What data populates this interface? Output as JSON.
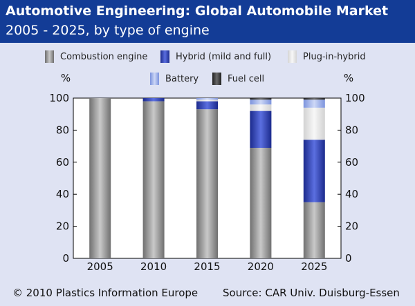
{
  "header": {
    "title": "Automotive Engineering: Global Automobile Market",
    "subtitle": "2005 - 2025, by type of engine"
  },
  "footer": {
    "copyright": "© 2010 Plastics Information Europe",
    "source": "Source: CAR Univ. Duisburg-Essen"
  },
  "colors": {
    "header_bg": "#133c96",
    "background": "#dfe3f3",
    "combustion": "#8a8a8a",
    "hybrid": "#2e3fb5",
    "plugin": "#e6e6e6",
    "battery": "#9fb2ea",
    "fuelcell": "#3a3a3a"
  },
  "chart_data": {
    "type": "bar",
    "stacked": true,
    "categories": [
      "2005",
      "2010",
      "2015",
      "2020",
      "2025"
    ],
    "series": [
      {
        "name": "Combustion engine",
        "key": "combustion",
        "values": [
          100,
          98,
          93,
          69,
          35
        ]
      },
      {
        "name": "Hybrid (mild and full)",
        "key": "hybrid",
        "values": [
          0,
          2,
          5,
          23,
          39
        ]
      },
      {
        "name": "Plug-in-hybrid",
        "key": "plugin",
        "values": [
          0,
          0,
          1,
          4,
          20
        ]
      },
      {
        "name": "Battery",
        "key": "battery",
        "values": [
          0,
          0,
          1,
          3,
          5
        ]
      },
      {
        "name": "Fuel cell",
        "key": "fuelcell",
        "values": [
          0,
          0,
          0,
          1,
          1
        ]
      }
    ],
    "ylim": [
      0,
      100
    ],
    "yticks": [
      0,
      20,
      40,
      60,
      80,
      100
    ],
    "ylabel_left": "%",
    "ylabel_right": "%",
    "grid": false,
    "legend_position": "top"
  }
}
